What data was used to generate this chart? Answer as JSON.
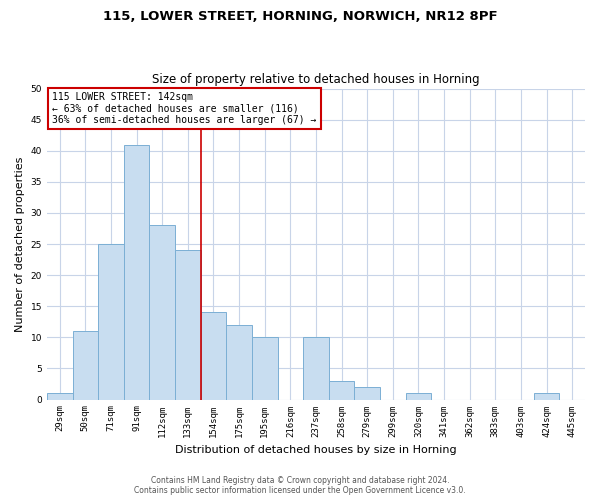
{
  "title": "115, LOWER STREET, HORNING, NORWICH, NR12 8PF",
  "subtitle": "Size of property relative to detached houses in Horning",
  "xlabel": "Distribution of detached houses by size in Horning",
  "ylabel": "Number of detached properties",
  "bar_labels": [
    "29sqm",
    "50sqm",
    "71sqm",
    "91sqm",
    "112sqm",
    "133sqm",
    "154sqm",
    "175sqm",
    "195sqm",
    "216sqm",
    "237sqm",
    "258sqm",
    "279sqm",
    "299sqm",
    "320sqm",
    "341sqm",
    "362sqm",
    "383sqm",
    "403sqm",
    "424sqm",
    "445sqm"
  ],
  "bar_values": [
    1,
    11,
    25,
    41,
    28,
    24,
    14,
    12,
    10,
    0,
    10,
    3,
    2,
    0,
    1,
    0,
    0,
    0,
    0,
    1,
    0
  ],
  "bar_color": "#c8ddf0",
  "bar_edgecolor": "#7bafd4",
  "vline_color": "#cc0000",
  "ylim": [
    0,
    50
  ],
  "yticks": [
    0,
    5,
    10,
    15,
    20,
    25,
    30,
    35,
    40,
    45,
    50
  ],
  "annotation_title": "115 LOWER STREET: 142sqm",
  "annotation_line1": "← 63% of detached houses are smaller (116)",
  "annotation_line2": "36% of semi-detached houses are larger (67) →",
  "footer_line1": "Contains HM Land Registry data © Crown copyright and database right 2024.",
  "footer_line2": "Contains public sector information licensed under the Open Government Licence v3.0.",
  "grid_color": "#c8d4e8",
  "title_fontsize": 9.5,
  "subtitle_fontsize": 8.5,
  "xlabel_fontsize": 8,
  "ylabel_fontsize": 8,
  "tick_fontsize": 6.5,
  "footer_fontsize": 5.5
}
